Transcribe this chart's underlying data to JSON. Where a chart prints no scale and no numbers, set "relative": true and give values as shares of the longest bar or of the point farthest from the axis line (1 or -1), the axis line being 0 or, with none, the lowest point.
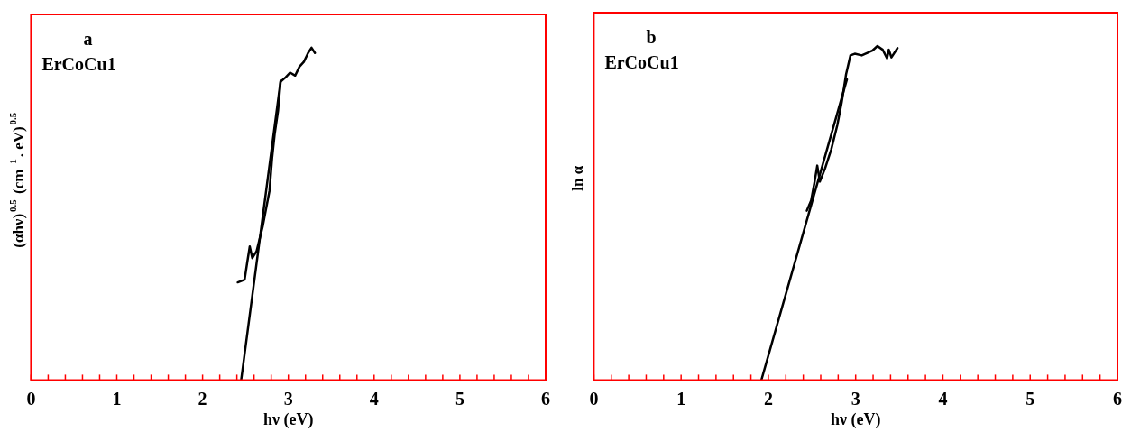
{
  "chart_data": [
    {
      "type": "line",
      "relative": true,
      "xlabel": "hν (eV)",
      "ylabel": "(αhν)$^{0.5}$ (cm$^{-1}$. eV)$^{0.5}$",
      "annotations": [
        "a",
        "ErCoCu1"
      ],
      "marker": "none",
      "line_style": "solid",
      "grid": false,
      "legend": false,
      "xlim": [
        0,
        6
      ],
      "xticks": [
        0,
        {
          "value": 0.2,
          "label": null
        },
        {
          "value": 0.4,
          "label": null
        },
        {
          "value": 0.6,
          "label": null
        },
        {
          "value": 0.8,
          "label": null
        },
        1,
        {
          "value": 1.2,
          "label": null
        },
        {
          "value": 1.4,
          "label": null
        },
        {
          "value": 1.6,
          "label": null
        },
        {
          "value": 1.8,
          "label": null
        },
        2,
        {
          "value": 2.2,
          "label": null
        },
        {
          "value": 2.4,
          "label": null
        },
        {
          "value": 2.6,
          "label": null
        },
        {
          "value": 2.8,
          "label": null
        },
        3,
        {
          "value": 3.2,
          "label": null
        },
        {
          "value": 3.4,
          "label": null
        },
        {
          "value": 3.6,
          "label": null
        },
        {
          "value": 3.8,
          "label": null
        },
        4,
        {
          "value": 4.2,
          "label": null
        },
        {
          "value": 4.4,
          "label": null
        },
        {
          "value": 4.6,
          "label": null
        },
        {
          "value": 4.8,
          "label": null
        },
        5,
        {
          "value": 5.2,
          "label": null
        },
        {
          "value": 5.4,
          "label": null
        },
        {
          "value": 5.6,
          "label": null
        },
        {
          "value": 5.8,
          "label": null
        },
        6
      ],
      "series": [
        {
          "type": "line",
          "color": "#000000",
          "x": [
            2.41,
            2.49,
            2.52,
            2.55,
            2.58,
            2.63,
            2.7,
            2.78,
            2.81,
            2.84,
            2.88,
            2.91,
            2.97,
            3.02,
            3.08,
            3.13,
            3.18,
            3.23,
            3.27,
            3.31
          ],
          "values": [
            0.294,
            0.302,
            0.353,
            0.402,
            0.367,
            0.388,
            0.461,
            0.569,
            0.666,
            0.739,
            0.81,
            0.898,
            0.911,
            0.925,
            0.916,
            0.943,
            0.957,
            0.984,
            1.0,
            0.984
          ]
        },
        {
          "type": "line",
          "color": "#000000",
          "x": [
            2.45,
            2.91
          ],
          "values": [
            0,
            0.9
          ]
        }
      ]
    },
    {
      "type": "line",
      "relative": true,
      "xlabel": "hν (eV)",
      "ylabel": "ln α",
      "annotations": [
        "b",
        "ErCoCu1"
      ],
      "marker": "none",
      "line_style": "solid",
      "grid": false,
      "legend": false,
      "xlim": [
        0,
        6
      ],
      "xticks": [
        0,
        {
          "value": 0.2,
          "label": null
        },
        {
          "value": 0.4,
          "label": null
        },
        {
          "value": 0.6,
          "label": null
        },
        {
          "value": 0.8,
          "label": null
        },
        1,
        {
          "value": 1.2,
          "label": null
        },
        {
          "value": 1.4,
          "label": null
        },
        {
          "value": 1.6,
          "label": null
        },
        {
          "value": 1.8,
          "label": null
        },
        2,
        {
          "value": 2.2,
          "label": null
        },
        {
          "value": 2.4,
          "label": null
        },
        {
          "value": 2.6,
          "label": null
        },
        {
          "value": 2.8,
          "label": null
        },
        3,
        {
          "value": 3.2,
          "label": null
        },
        {
          "value": 3.4,
          "label": null
        },
        {
          "value": 3.6,
          "label": null
        },
        {
          "value": 3.8,
          "label": null
        },
        4,
        {
          "value": 4.2,
          "label": null
        },
        {
          "value": 4.4,
          "label": null
        },
        {
          "value": 4.6,
          "label": null
        },
        {
          "value": 4.8,
          "label": null
        },
        5,
        {
          "value": 5.2,
          "label": null
        },
        {
          "value": 5.4,
          "label": null
        },
        {
          "value": 5.6,
          "label": null
        },
        {
          "value": 5.8,
          "label": null
        },
        6
      ],
      "series": [
        {
          "type": "line",
          "color": "#000000",
          "x": [
            2.44,
            2.49,
            2.53,
            2.56,
            2.59,
            2.65,
            2.72,
            2.79,
            2.84,
            2.89,
            2.94,
            2.99,
            3.07,
            3.14,
            3.19,
            3.25,
            3.31,
            3.36,
            3.38,
            3.41,
            3.48
          ],
          "values": [
            0.507,
            0.538,
            0.594,
            0.642,
            0.594,
            0.634,
            0.69,
            0.763,
            0.831,
            0.915,
            0.972,
            0.977,
            0.972,
            0.98,
            0.986,
            1.0,
            0.989,
            0.963,
            0.989,
            0.966,
            0.994
          ]
        },
        {
          "type": "line",
          "color": "#000000",
          "x": [
            1.92,
            2.9
          ],
          "values": [
            0,
            0.9
          ]
        }
      ]
    }
  ]
}
